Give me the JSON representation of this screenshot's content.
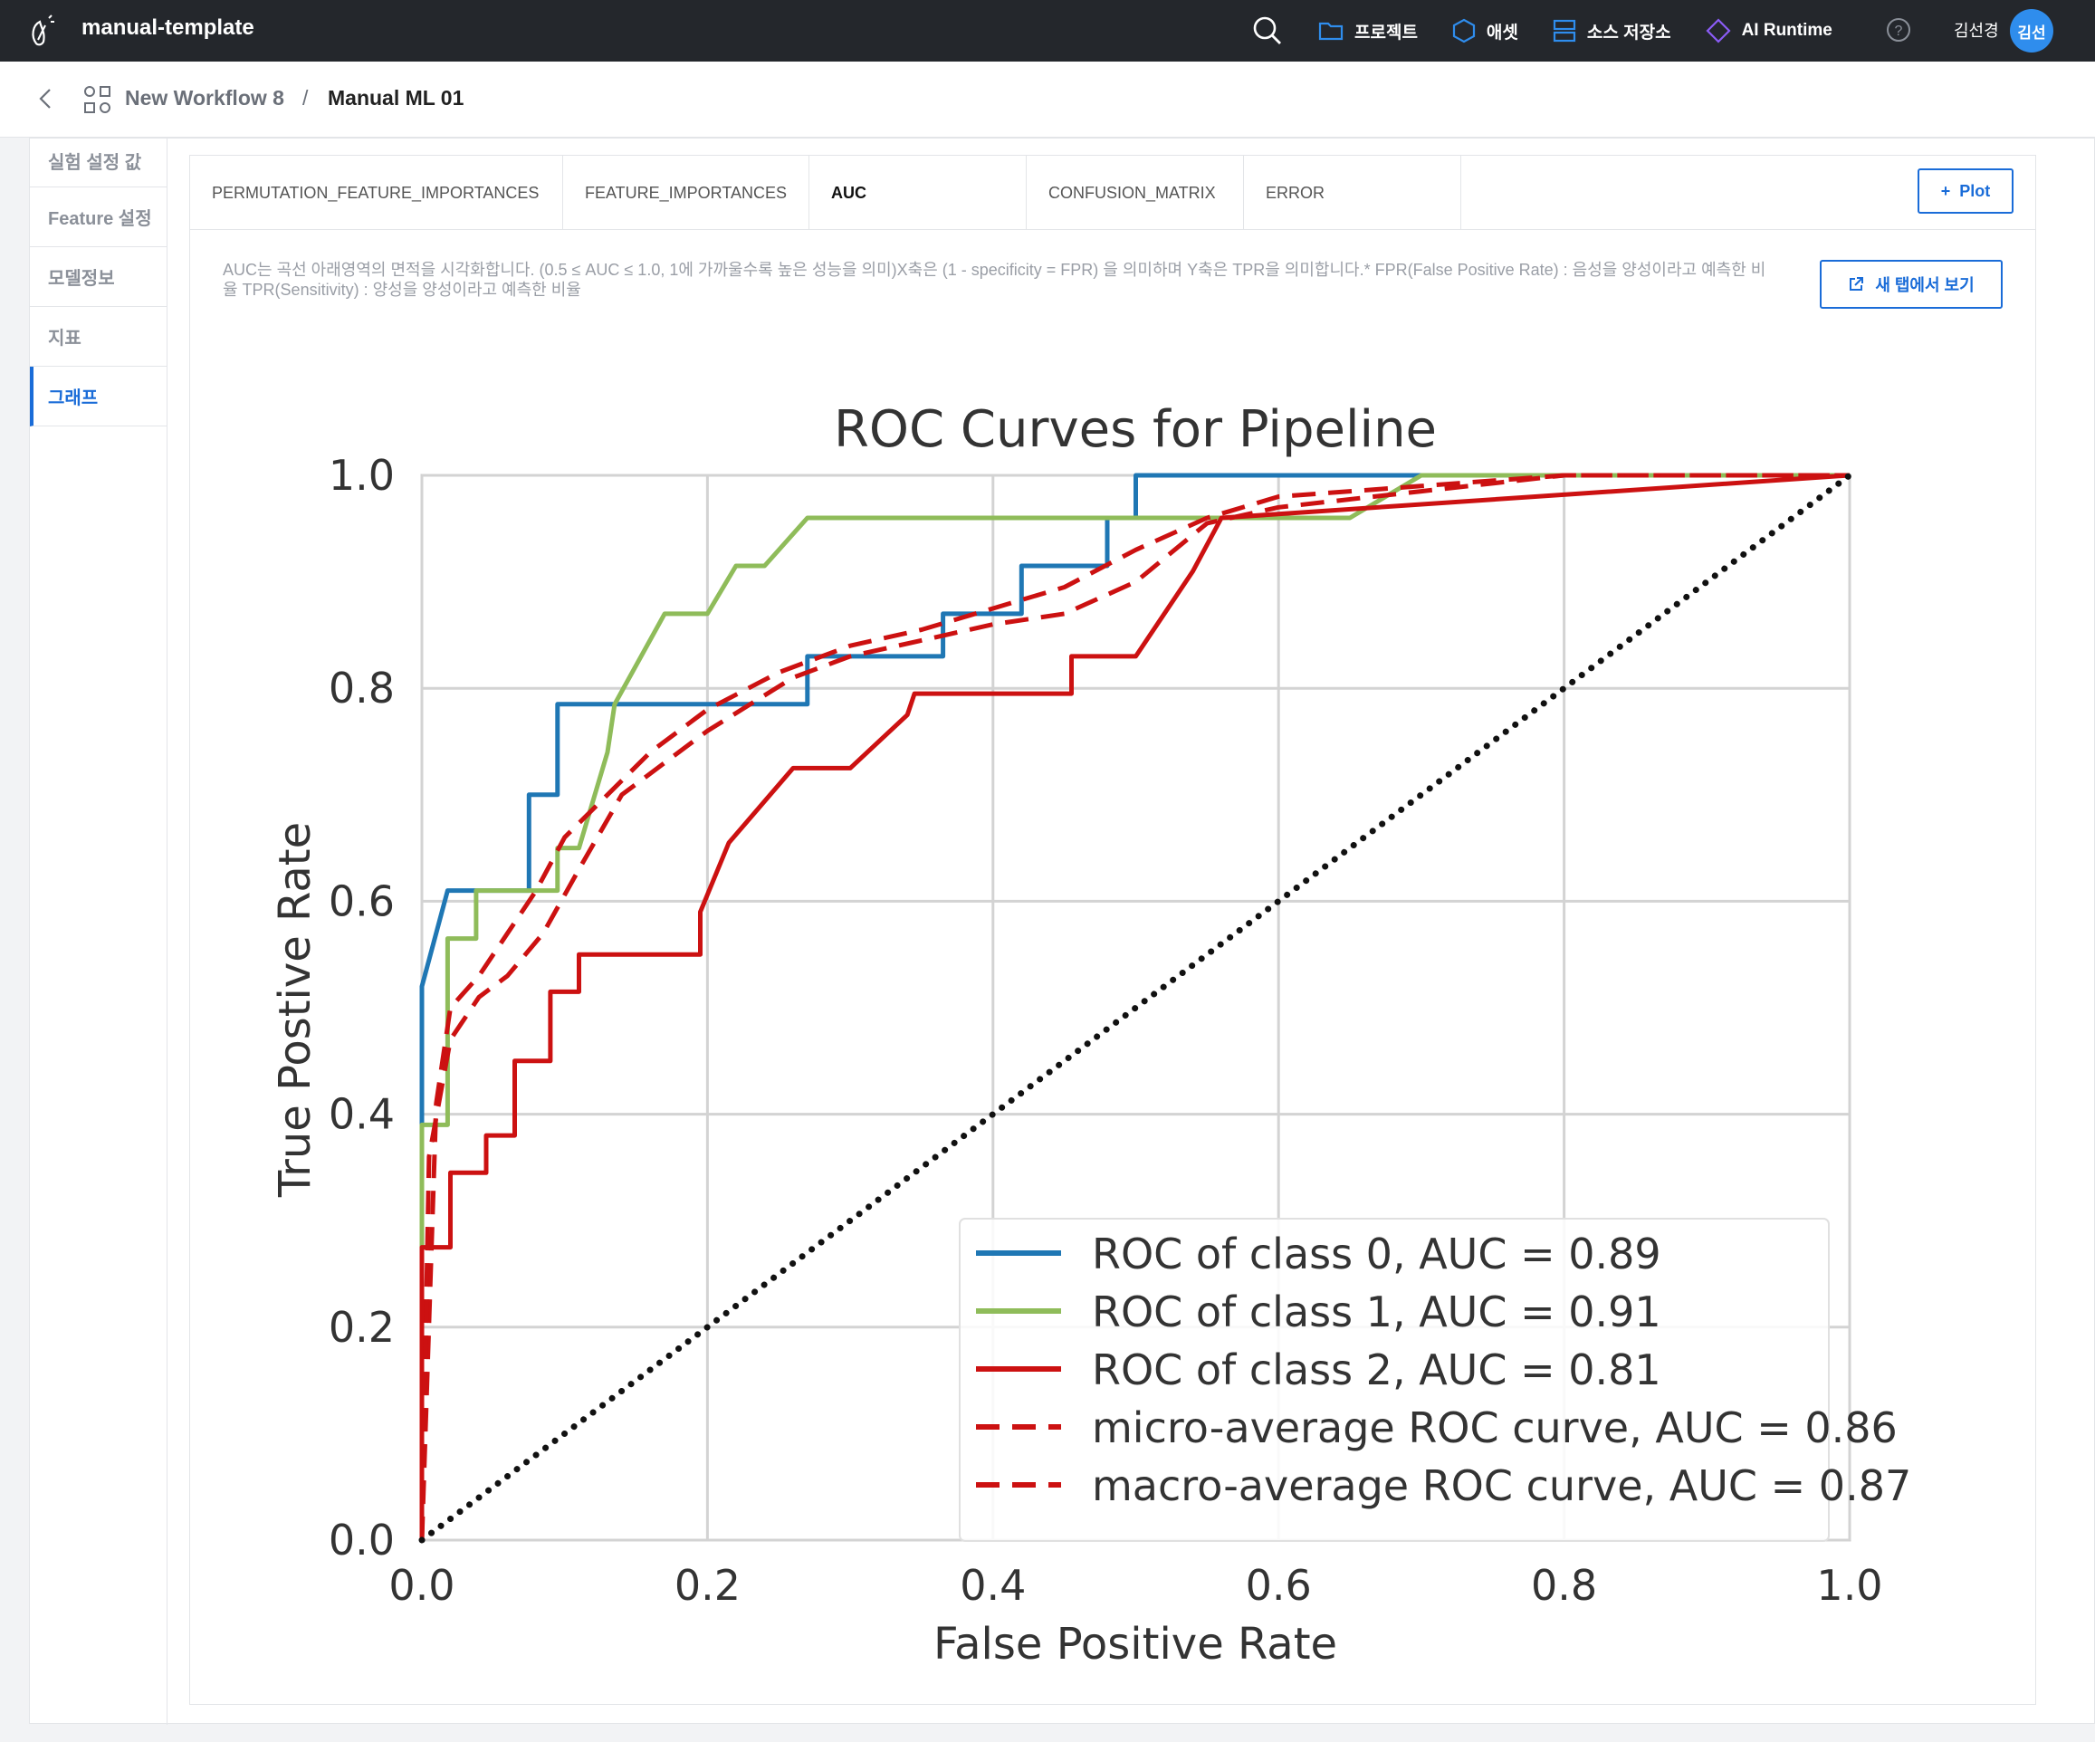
{
  "app": {
    "title": "manual-template",
    "logo_icon": "feather-logo-icon"
  },
  "topnav": {
    "items": [
      {
        "label": "프로젝트",
        "icon": "folder-icon",
        "color": "#2f8ded"
      },
      {
        "label": "애셋",
        "icon": "hexagon-icon",
        "color": "#2f8ded"
      },
      {
        "label": "소스 저장소",
        "icon": "storage-icon",
        "color": "#2f8ded"
      },
      {
        "label": "AI Runtime",
        "icon": "diamond-icon",
        "color": "#8b5cf6"
      }
    ],
    "user_name": "김선경",
    "avatar_text": "김선"
  },
  "breadcrumb": {
    "workflow": "New Workflow 8",
    "separator": "/",
    "current": "Manual ML 01"
  },
  "sidenav": {
    "items": [
      "실험 설정 값",
      "Feature 설정",
      "모델정보",
      "지표",
      "그래프"
    ],
    "active_index": 4
  },
  "tabs": {
    "items": [
      "PERMUTATION_FEATURE_IMPORTANCES",
      "FEATURE_IMPORTANCES",
      "AUC",
      "CONFUSION_MATRIX",
      "ERROR"
    ],
    "active_index": 2,
    "plot_button": "Plot"
  },
  "description": "AUC는 곡선 아래영역의 면적을 시각화합니다. (0.5 ≤ AUC ≤ 1.0, 1에 가까울수록 높은 성능을 의미)X축은 (1 - specificity = FPR) 을 의미하며 Y축은 TPR을 의미합니다.* FPR(False Positive Rate) : 음성을 양성이라고 예측한 비율 TPR(Sensitivity) : 양성을 양성이라고 예측한 비율",
  "new_tab_button": "새 탭에서 보기",
  "chart_data": {
    "type": "line",
    "title": "ROC Curves for Pipeline",
    "xlabel": "False Positive Rate",
    "ylabel": "True Postive Rate",
    "xlim": [
      0.0,
      1.0
    ],
    "ylim": [
      0.0,
      1.0
    ],
    "xticks": [
      "0.0",
      "0.2",
      "0.4",
      "0.6",
      "0.8",
      "1.0"
    ],
    "yticks": [
      "0.0",
      "0.2",
      "0.4",
      "0.6",
      "0.8",
      "1.0"
    ],
    "grid": true,
    "legend_position": "lower-right",
    "series": [
      {
        "name": "ROC of class 0, AUC = 0.89",
        "color": "#1f77b4",
        "style": "solid",
        "x": [
          0.0,
          0.0,
          0.018,
          0.018,
          0.075,
          0.075,
          0.095,
          0.095,
          0.27,
          0.27,
          0.365,
          0.365,
          0.4,
          0.4,
          0.42,
          0.42,
          0.48,
          0.48,
          0.5,
          0.5,
          1.0
        ],
        "y": [
          0.0,
          0.52,
          0.61,
          0.61,
          0.61,
          0.7,
          0.7,
          0.785,
          0.785,
          0.83,
          0.83,
          0.87,
          0.87,
          0.87,
          0.87,
          0.915,
          0.915,
          0.96,
          0.96,
          1.0,
          1.0
        ]
      },
      {
        "name": "ROC of class 1, AUC = 0.91",
        "color": "#8fbc5a",
        "style": "solid",
        "x": [
          0.0,
          0.0,
          0.018,
          0.018,
          0.038,
          0.038,
          0.095,
          0.095,
          0.11,
          0.13,
          0.135,
          0.17,
          0.2,
          0.22,
          0.24,
          0.27,
          0.29,
          0.5,
          0.65,
          0.7,
          1.0
        ],
        "y": [
          0.0,
          0.39,
          0.39,
          0.565,
          0.565,
          0.61,
          0.61,
          0.65,
          0.65,
          0.74,
          0.785,
          0.87,
          0.87,
          0.915,
          0.915,
          0.96,
          0.96,
          0.96,
          0.96,
          1.0,
          1.0
        ]
      },
      {
        "name": "ROC of class 2, AUC = 0.81",
        "color": "#cc1111",
        "style": "solid",
        "x": [
          0.0,
          0.0,
          0.02,
          0.02,
          0.045,
          0.045,
          0.065,
          0.065,
          0.09,
          0.09,
          0.11,
          0.11,
          0.195,
          0.195,
          0.215,
          0.26,
          0.3,
          0.34,
          0.345,
          0.38,
          0.455,
          0.455,
          0.5,
          0.54,
          0.56,
          1.0
        ],
        "y": [
          0.0,
          0.275,
          0.275,
          0.345,
          0.345,
          0.38,
          0.38,
          0.45,
          0.45,
          0.515,
          0.515,
          0.55,
          0.55,
          0.59,
          0.655,
          0.725,
          0.725,
          0.775,
          0.795,
          0.795,
          0.795,
          0.83,
          0.83,
          0.91,
          0.96,
          1.0
        ]
      },
      {
        "name": "micro-average ROC curve, AUC = 0.86",
        "color": "#cc1111",
        "style": "dashed",
        "x": [
          0.0,
          0.01,
          0.02,
          0.04,
          0.06,
          0.08,
          0.1,
          0.13,
          0.16,
          0.2,
          0.25,
          0.3,
          0.35,
          0.4,
          0.45,
          0.5,
          0.55,
          0.6,
          0.7,
          0.8,
          1.0
        ],
        "y": [
          0.0,
          0.41,
          0.5,
          0.53,
          0.57,
          0.61,
          0.66,
          0.7,
          0.74,
          0.78,
          0.815,
          0.84,
          0.855,
          0.875,
          0.895,
          0.93,
          0.96,
          0.98,
          0.99,
          1.0,
          1.0
        ]
      },
      {
        "name": "macro-average ROC curve, AUC = 0.87",
        "color": "#cc1111",
        "style": "dashed",
        "x": [
          0.0,
          0.005,
          0.02,
          0.04,
          0.06,
          0.085,
          0.11,
          0.14,
          0.17,
          0.2,
          0.23,
          0.26,
          0.3,
          0.35,
          0.4,
          0.45,
          0.5,
          0.55,
          0.6,
          0.7,
          0.8,
          1.0
        ],
        "y": [
          0.0,
          0.36,
          0.47,
          0.51,
          0.53,
          0.57,
          0.63,
          0.7,
          0.73,
          0.76,
          0.785,
          0.81,
          0.83,
          0.845,
          0.86,
          0.87,
          0.9,
          0.955,
          0.97,
          0.985,
          1.0,
          1.0
        ]
      },
      {
        "name": "",
        "color": "#111111",
        "style": "dotted",
        "x": [
          0.0,
          1.0
        ],
        "y": [
          0.0,
          1.0
        ]
      }
    ]
  }
}
